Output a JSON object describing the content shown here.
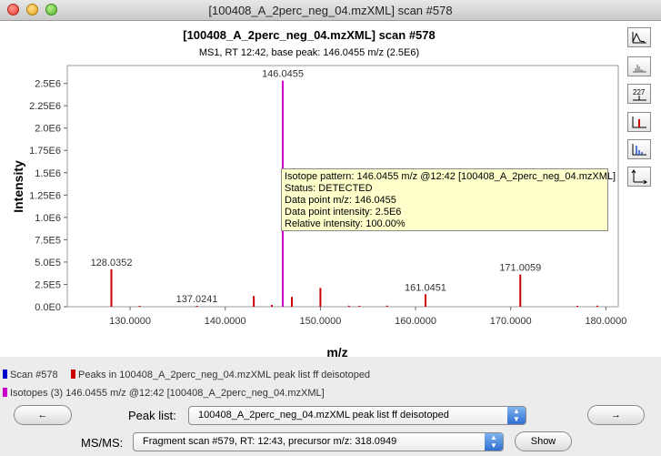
{
  "window": {
    "title": "[100408_A_2perc_neg_04.mzXML] scan #578"
  },
  "chart_data": {
    "type": "bar",
    "title": "[100408_A_2perc_neg_04.mzXML] scan #578",
    "subtitle": "MS1, RT 12:42, base peak: 146.0455 m/z (2.5E6)",
    "xlabel": "m/z",
    "ylabel": "Intensity",
    "xlim": [
      123.4,
      181.3
    ],
    "ylim": [
      0,
      2700000
    ],
    "x_ticks": [
      "130.0000",
      "140.0000",
      "150.0000",
      "160.0000",
      "170.0000",
      "180.0000"
    ],
    "y_ticks": [
      "0.0E0",
      "2.5E5",
      "5.0E5",
      "7.5E5",
      "1.0E6",
      "1.25E6",
      "1.5E6",
      "1.75E6",
      "2.0E6",
      "2.25E6",
      "2.5E6"
    ],
    "series": [
      {
        "name": "Scan #578",
        "color": "#0000cc",
        "peaks": []
      },
      {
        "name": "Peaks in 100408_A_2perc_neg_04.mzXML peak list ff deisotoped",
        "color": "#cc0000",
        "peaks": [
          {
            "mz": 128.0352,
            "intensity": 420000
          },
          {
            "mz": 131.0,
            "intensity": 8000
          },
          {
            "mz": 137.0241,
            "intensity": 10000
          },
          {
            "mz": 143.0,
            "intensity": 120000
          },
          {
            "mz": 144.9,
            "intensity": 20000
          },
          {
            "mz": 147.0,
            "intensity": 110000
          },
          {
            "mz": 150.0,
            "intensity": 210000
          },
          {
            "mz": 153.0,
            "intensity": 12000
          },
          {
            "mz": 154.1,
            "intensity": 9000
          },
          {
            "mz": 157.0,
            "intensity": 12000
          },
          {
            "mz": 161.0451,
            "intensity": 140000
          },
          {
            "mz": 171.0059,
            "intensity": 360000
          },
          {
            "mz": 177.0,
            "intensity": 8000
          },
          {
            "mz": 179.1,
            "intensity": 12000
          }
        ]
      },
      {
        "name": "Isotopes (3) 146.0455 m/z @12:42 [100408_A_2perc_neg_04.mzXML]",
        "color": "#cc00cc",
        "peaks": [
          {
            "mz": 146.0455,
            "intensity": 2530000
          }
        ]
      }
    ],
    "peak_labels": [
      {
        "mz": 146.0455,
        "intensity": 2530000,
        "text": "146.0455"
      },
      {
        "mz": 128.0352,
        "intensity": 420000,
        "text": "128.0352"
      },
      {
        "mz": 137.0241,
        "intensity": 10000,
        "text": "137.0241"
      },
      {
        "mz": 161.0451,
        "intensity": 140000,
        "text": "161.0451"
      },
      {
        "mz": 171.0059,
        "intensity": 360000,
        "text": "171.0059"
      }
    ]
  },
  "tooltip": {
    "lines": [
      "Isotope pattern: 146.0455 m/z @12:42 [100408_A_2perc_neg_04.mzXML]",
      "Status: DETECTED",
      "Data point m/z: 146.0455",
      "Data point intensity: 2.5E6",
      "Relative intensity: 100.00%"
    ]
  },
  "legend": [
    {
      "color": "#0000cc",
      "label": "Scan #578"
    },
    {
      "color": "#cc0000",
      "label": "Peaks in 100408_A_2perc_neg_04.mzXML peak list ff deisotoped"
    },
    {
      "color": "#cc00cc",
      "label": "Isotopes (3) 146.0455 m/z @12:42 [100408_A_2perc_neg_04.mzXML]"
    }
  ],
  "toolbar": {
    "buttons": [
      "continuous-mode-icon",
      "centroid-mode-icon",
      "peak-labels-icon",
      "peak-list-icon",
      "isotopes-icon",
      "axes-icon"
    ],
    "peak_label_text": "227"
  },
  "controls": {
    "prev_label": "←",
    "next_label": "→",
    "peak_list_label": "Peak list:",
    "peak_list_value": "100408_A_2perc_neg_04.mzXML peak list ff deisotoped",
    "msms_label": "MS/MS:",
    "msms_value": "Fragment scan #579, RT: 12:43, precursor m/z: 318.0949",
    "show_label": "Show"
  }
}
